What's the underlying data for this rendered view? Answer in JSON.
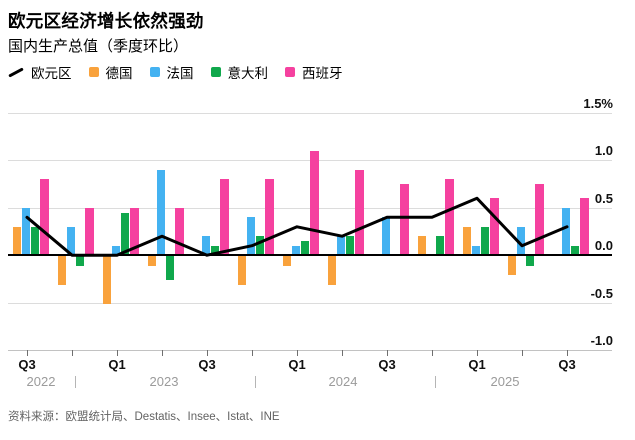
{
  "header": {
    "title": "欧元区经济增长依然强劲",
    "subtitle": "国内生产总值（季度环比）"
  },
  "legend": {
    "items": [
      {
        "key": "eurozone",
        "label": "欧元区",
        "color": "#000000",
        "swatch": "line"
      },
      {
        "key": "germany",
        "label": "德国",
        "color": "#F9A23C",
        "swatch": "square"
      },
      {
        "key": "france",
        "label": "法国",
        "color": "#44B2F1",
        "swatch": "square"
      },
      {
        "key": "italy",
        "label": "意大利",
        "color": "#10A84C",
        "swatch": "square"
      },
      {
        "key": "spain",
        "label": "西班牙",
        "color": "#F5419F",
        "swatch": "square"
      }
    ]
  },
  "source": {
    "label": "资料来源：欧盟统计局、Destatis、Insee、Istat、INE"
  },
  "chart_data": {
    "type": "bar+line",
    "title": "欧元区经济增长依然强劲",
    "subtitle": "国内生产总值（季度环比）",
    "categories": [
      "2022Q3",
      "2022Q4",
      "2023Q1",
      "2023Q2",
      "2023Q3",
      "2023Q4",
      "2024Q1",
      "2024Q2",
      "2024Q3",
      "2024Q4",
      "2025Q1",
      "2025Q2",
      "2025Q3"
    ],
    "x_tick_labels": [
      "Q3",
      "",
      "Q1",
      "",
      "Q3",
      "",
      "Q1",
      "",
      "Q3",
      "",
      "Q1",
      "",
      "Q3"
    ],
    "year_labels": [
      "2022",
      "2023",
      "2024",
      "2025"
    ],
    "series": [
      {
        "key": "germany",
        "name": "德国",
        "color": "#F9A23C",
        "values": [
          0.3,
          -0.3,
          -0.5,
          -0.1,
          0.0,
          -0.3,
          -0.1,
          -0.3,
          0.0,
          0.2,
          0.3,
          -0.2,
          0.0
        ]
      },
      {
        "key": "france",
        "name": "法国",
        "color": "#44B2F1",
        "values": [
          0.5,
          0.3,
          0.1,
          0.9,
          0.2,
          0.4,
          0.1,
          0.2,
          0.4,
          0.0,
          0.1,
          0.3,
          0.5
        ]
      },
      {
        "key": "italy",
        "name": "意大利",
        "color": "#10A84C",
        "values": [
          0.3,
          -0.1,
          0.45,
          -0.25,
          0.1,
          0.2,
          0.15,
          0.2,
          0.0,
          0.2,
          0.3,
          -0.1,
          0.1
        ]
      },
      {
        "key": "spain",
        "name": "西班牙",
        "color": "#F5419F",
        "values": [
          0.8,
          0.5,
          0.5,
          0.5,
          0.8,
          0.8,
          1.1,
          0.9,
          0.75,
          0.8,
          0.6,
          0.75,
          0.6
        ]
      }
    ],
    "line_series": {
      "key": "eurozone",
      "name": "欧元区",
      "color": "#000000",
      "values": [
        0.4,
        0.0,
        0.0,
        0.2,
        0.0,
        0.1,
        0.3,
        0.2,
        0.4,
        0.4,
        0.6,
        0.1,
        0.3
      ]
    },
    "ylim": [
      -1.0,
      1.5
    ],
    "yticks": [
      1.5,
      1.0,
      0.5,
      0.0,
      -0.5,
      -1.0
    ],
    "ytick_labels": [
      "1.5%",
      "1.0",
      "0.5",
      "0.0",
      "-0.5",
      "-1.0"
    ],
    "grid": true,
    "legend_position": "top"
  }
}
